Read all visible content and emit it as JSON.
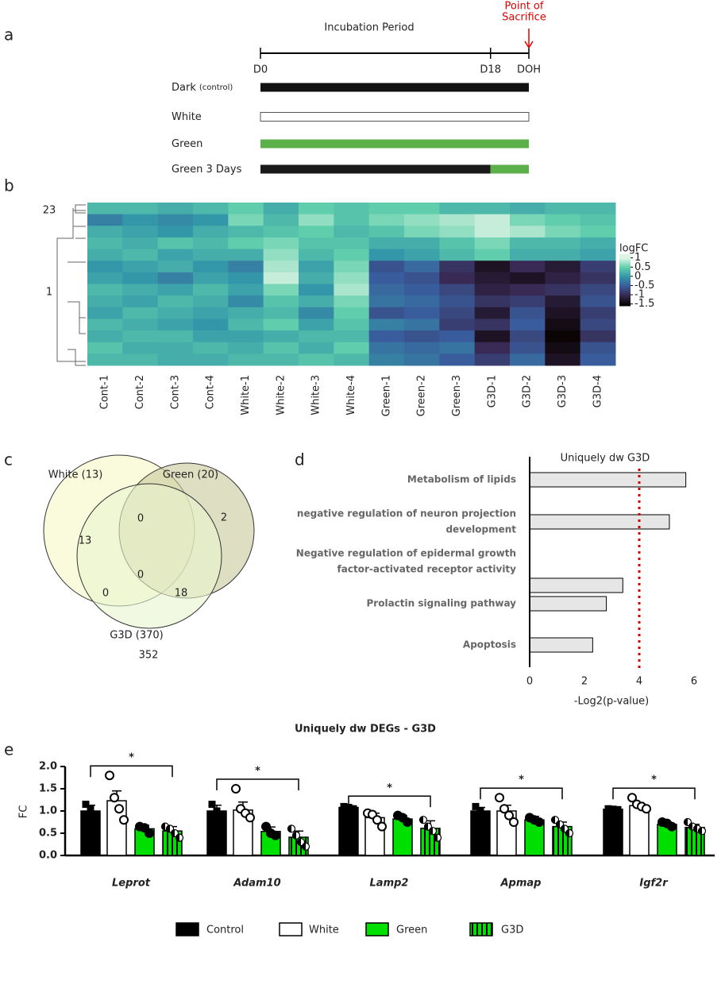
{
  "panel_labels": [
    "a",
    "b",
    "c",
    "d",
    "e"
  ],
  "timeline": {
    "title": "Incubation Period",
    "sacrifice": [
      "Point of",
      "Sacrifice"
    ],
    "xlim": [
      0,
      21
    ],
    "ticks": [
      {
        "value": 0,
        "label": "D0"
      },
      {
        "value": 18,
        "label": "D18"
      },
      {
        "value": 21,
        "label": "DOH"
      }
    ],
    "groups": [
      {
        "name": "Dark",
        "note": "(control)",
        "segments": [
          {
            "start": 0,
            "end": 21,
            "color": "#111111"
          }
        ]
      },
      {
        "name": "White",
        "segments": [
          {
            "start": 0,
            "end": 21,
            "color": "#ffffff"
          }
        ]
      },
      {
        "name": "Green",
        "segments": [
          {
            "start": 0,
            "end": 21,
            "color": "#5cb04a"
          }
        ]
      },
      {
        "name": "Green 3 Days",
        "segments": [
          {
            "start": 0,
            "end": 18,
            "color": "#1a1a1a"
          },
          {
            "start": 18,
            "end": 21,
            "color": "#5cb04a"
          }
        ]
      }
    ]
  },
  "heatmap": {
    "columns": [
      "Cont-1",
      "Cont-2",
      "Cont-3",
      "Cont-4",
      "White-1",
      "White-2",
      "White-3",
      "White-4",
      "Green-1",
      "Green-2",
      "Green-3",
      "G3D-1",
      "G3D-2",
      "G3D-3",
      "G3D-4"
    ],
    "cluster_labels": [
      "23",
      "1"
    ],
    "legend_title": "logFC",
    "clim": [
      -1.6,
      1.2
    ],
    "colorbar_ticks": [
      1,
      0.5,
      0,
      -0.5,
      -1,
      -1.5
    ],
    "colormap": [
      {
        "value": -1.5,
        "color": "#0b0405"
      },
      {
        "value": -1,
        "color": "#382a54"
      },
      {
        "value": -0.5,
        "color": "#395d9c"
      },
      {
        "value": 0,
        "color": "#3497a9"
      },
      {
        "value": 0.5,
        "color": "#60ceac"
      },
      {
        "value": 1,
        "color": "#def5e5"
      }
    ],
    "values": [
      [
        0.3,
        0.3,
        0.2,
        0.3,
        0.5,
        0.2,
        0.5,
        0.4,
        0.5,
        0.5,
        0.3,
        0.3,
        0.2,
        0.3,
        0.3
      ],
      [
        -0.2,
        0,
        -0.1,
        0,
        0.6,
        0.3,
        0.7,
        0.4,
        0.6,
        0.7,
        0.8,
        0.9,
        0.6,
        0.5,
        0.4
      ],
      [
        0.2,
        0.1,
        0,
        0.2,
        0.3,
        0.4,
        0.5,
        0.3,
        0.4,
        0.6,
        0.7,
        0.9,
        0.8,
        0.6,
        0.5
      ],
      [
        0.3,
        0.2,
        0.4,
        0.3,
        0.5,
        0.6,
        0.4,
        0.4,
        0.2,
        0.2,
        0.4,
        0.6,
        0.3,
        0.3,
        0.2
      ],
      [
        0.2,
        0.3,
        0.1,
        0.2,
        0.2,
        0.7,
        0.3,
        0.5,
        0,
        0.1,
        0.3,
        0.5,
        0.2,
        0.2,
        0.1
      ],
      [
        0,
        0.1,
        0.2,
        0,
        -0.2,
        0.8,
        0.1,
        0.6,
        -0.6,
        -0.4,
        -0.9,
        -1.3,
        -1,
        -1.2,
        -0.8
      ],
      [
        0.1,
        0,
        -0.2,
        0.1,
        0,
        0.9,
        0.2,
        0.7,
        -0.5,
        -0.6,
        -1,
        -1.2,
        -1.3,
        -1.1,
        -0.9
      ],
      [
        0.3,
        0.2,
        0.1,
        0.3,
        0.1,
        0.6,
        0,
        0.8,
        -0.4,
        -0.5,
        -0.7,
        -1.1,
        -1,
        -0.9,
        -0.7
      ],
      [
        0.2,
        0.1,
        0.3,
        0.2,
        -0.1,
        0.4,
        0.2,
        0.6,
        -0.3,
        -0.4,
        -0.6,
        -0.9,
        -0.8,
        -1.2,
        -0.6
      ],
      [
        0.1,
        0.3,
        0.2,
        0.1,
        0.2,
        0.3,
        -0.1,
        0.5,
        -0.6,
        -0.5,
        -0.7,
        -1.2,
        -0.6,
        -1.3,
        -0.8
      ],
      [
        0.3,
        0.2,
        0.1,
        0,
        0.3,
        0.5,
        0.1,
        0.4,
        -0.2,
        -0.3,
        -0.8,
        -0.9,
        -0.5,
        -1.4,
        -0.7
      ],
      [
        0.2,
        0.3,
        0.3,
        0.1,
        0.1,
        0.2,
        0.3,
        0.3,
        -0.5,
        -0.6,
        -0.5,
        -1.3,
        -0.7,
        -1.5,
        -0.9
      ],
      [
        0.4,
        0.2,
        0.2,
        0.3,
        0.2,
        0.4,
        0.2,
        0.5,
        -0.3,
        -0.4,
        -0.3,
        -1,
        -0.6,
        -1.4,
        -0.6
      ],
      [
        0.3,
        0.3,
        0.2,
        0.2,
        0.3,
        0.3,
        0.4,
        0.3,
        -0.2,
        -0.3,
        -0.5,
        -0.8,
        -0.4,
        -1.3,
        -0.5
      ]
    ]
  },
  "venn": {
    "sets": [
      "White (13)",
      "Green (20)",
      "G3D (370)"
    ],
    "regions": [
      13,
      0,
      2,
      0,
      0,
      18,
      352
    ]
  },
  "chart_data": [
    {
      "type": "hbar",
      "title": "Uniquely dw G3D",
      "xlabel": "-Log2(p-value)",
      "categories": [
        [
          "Metabolism of lipids"
        ],
        [
          "negative regulation of neuron projection",
          "development"
        ],
        [
          "Negative regulation of epidermal growth",
          "factor-activated receptor activity"
        ],
        [
          "Prolactin signaling pathway"
        ],
        [
          "Apoptosis"
        ]
      ],
      "values": [
        5.7,
        5.1,
        3.4,
        2.8,
        2.3
      ],
      "color": "#e6e6e6",
      "xlim": [
        0,
        7
      ],
      "xticks": [
        0,
        2,
        4,
        6
      ],
      "threshold": 4,
      "threshold_color": "#d00000"
    },
    {
      "type": "grouped_bar",
      "title": "Uniquely dw DEGs -  G3D",
      "ylabel": "FC",
      "categories": [
        "Leprot",
        "Adam10",
        "Lamp2",
        "Apmap",
        "Igf2r"
      ],
      "annotations": [
        "*",
        "*",
        "*",
        "*",
        "*"
      ],
      "ylim": [
        0,
        2
      ],
      "yticks": [
        {
          "value": 0,
          "label": "0.0"
        },
        {
          "value": 0.5,
          "label": "0.5"
        },
        {
          "value": 1,
          "label": "1.0"
        },
        {
          "value": 1.5,
          "label": "1.5"
        },
        {
          "value": 2,
          "label": "2.0"
        }
      ],
      "series": [
        {
          "name": "Control",
          "color": "#000000",
          "marker": "square",
          "values": [
            1.0,
            1.0,
            1.08,
            1.0,
            1.04
          ],
          "errors": [
            0.13,
            0.13,
            0.04,
            0.08,
            0.01
          ],
          "points": [
            [
              1.15,
              1.05,
              0.85
            ],
            [
              1.15,
              1.0,
              0.9
            ],
            [
              1.1,
              1.08,
              1.05
            ],
            [
              1.1,
              1.0,
              0.92
            ],
            [
              1.05,
              1.04,
              1.03
            ]
          ]
        },
        {
          "name": "White",
          "color": "#ffffff",
          "marker": "open",
          "values": [
            1.23,
            1.02,
            0.85,
            1.0,
            1.12
          ],
          "errors": [
            0.22,
            0.18,
            0.1,
            0.13,
            0.07
          ],
          "points": [
            [
              1.8,
              1.3,
              1.05,
              0.8
            ],
            [
              1.5,
              1.05,
              0.95,
              0.85
            ],
            [
              0.95,
              0.92,
              0.8,
              0.65
            ],
            [
              1.3,
              1.05,
              0.9,
              0.75
            ],
            [
              1.3,
              1.15,
              1.1,
              1.05
            ]
          ]
        },
        {
          "name": "Green",
          "color": "#00e000",
          "marker": "filled",
          "values": [
            0.6,
            0.54,
            0.82,
            0.8,
            0.7
          ],
          "errors": [
            0.08,
            0.1,
            0.07,
            0.08,
            0.05
          ],
          "points": [
            [
              0.65,
              0.62,
              0.5
            ],
            [
              0.65,
              0.5,
              0.45
            ],
            [
              0.9,
              0.85,
              0.75
            ],
            [
              0.85,
              0.8,
              0.75
            ],
            [
              0.75,
              0.72,
              0.65
            ]
          ]
        },
        {
          "name": "G3D",
          "color": "#00e000",
          "hatch": true,
          "marker": "half",
          "values": [
            0.55,
            0.41,
            0.61,
            0.65,
            0.63
          ],
          "errors": [
            0.1,
            0.14,
            0.17,
            0.1,
            0.07
          ],
          "points": [
            [
              0.65,
              0.6,
              0.5,
              0.4
            ],
            [
              0.6,
              0.45,
              0.3,
              0.2
            ],
            [
              0.8,
              0.65,
              0.55,
              0.4
            ],
            [
              0.8,
              0.7,
              0.6,
              0.5
            ],
            [
              0.75,
              0.65,
              0.6,
              0.55
            ]
          ]
        }
      ]
    }
  ]
}
